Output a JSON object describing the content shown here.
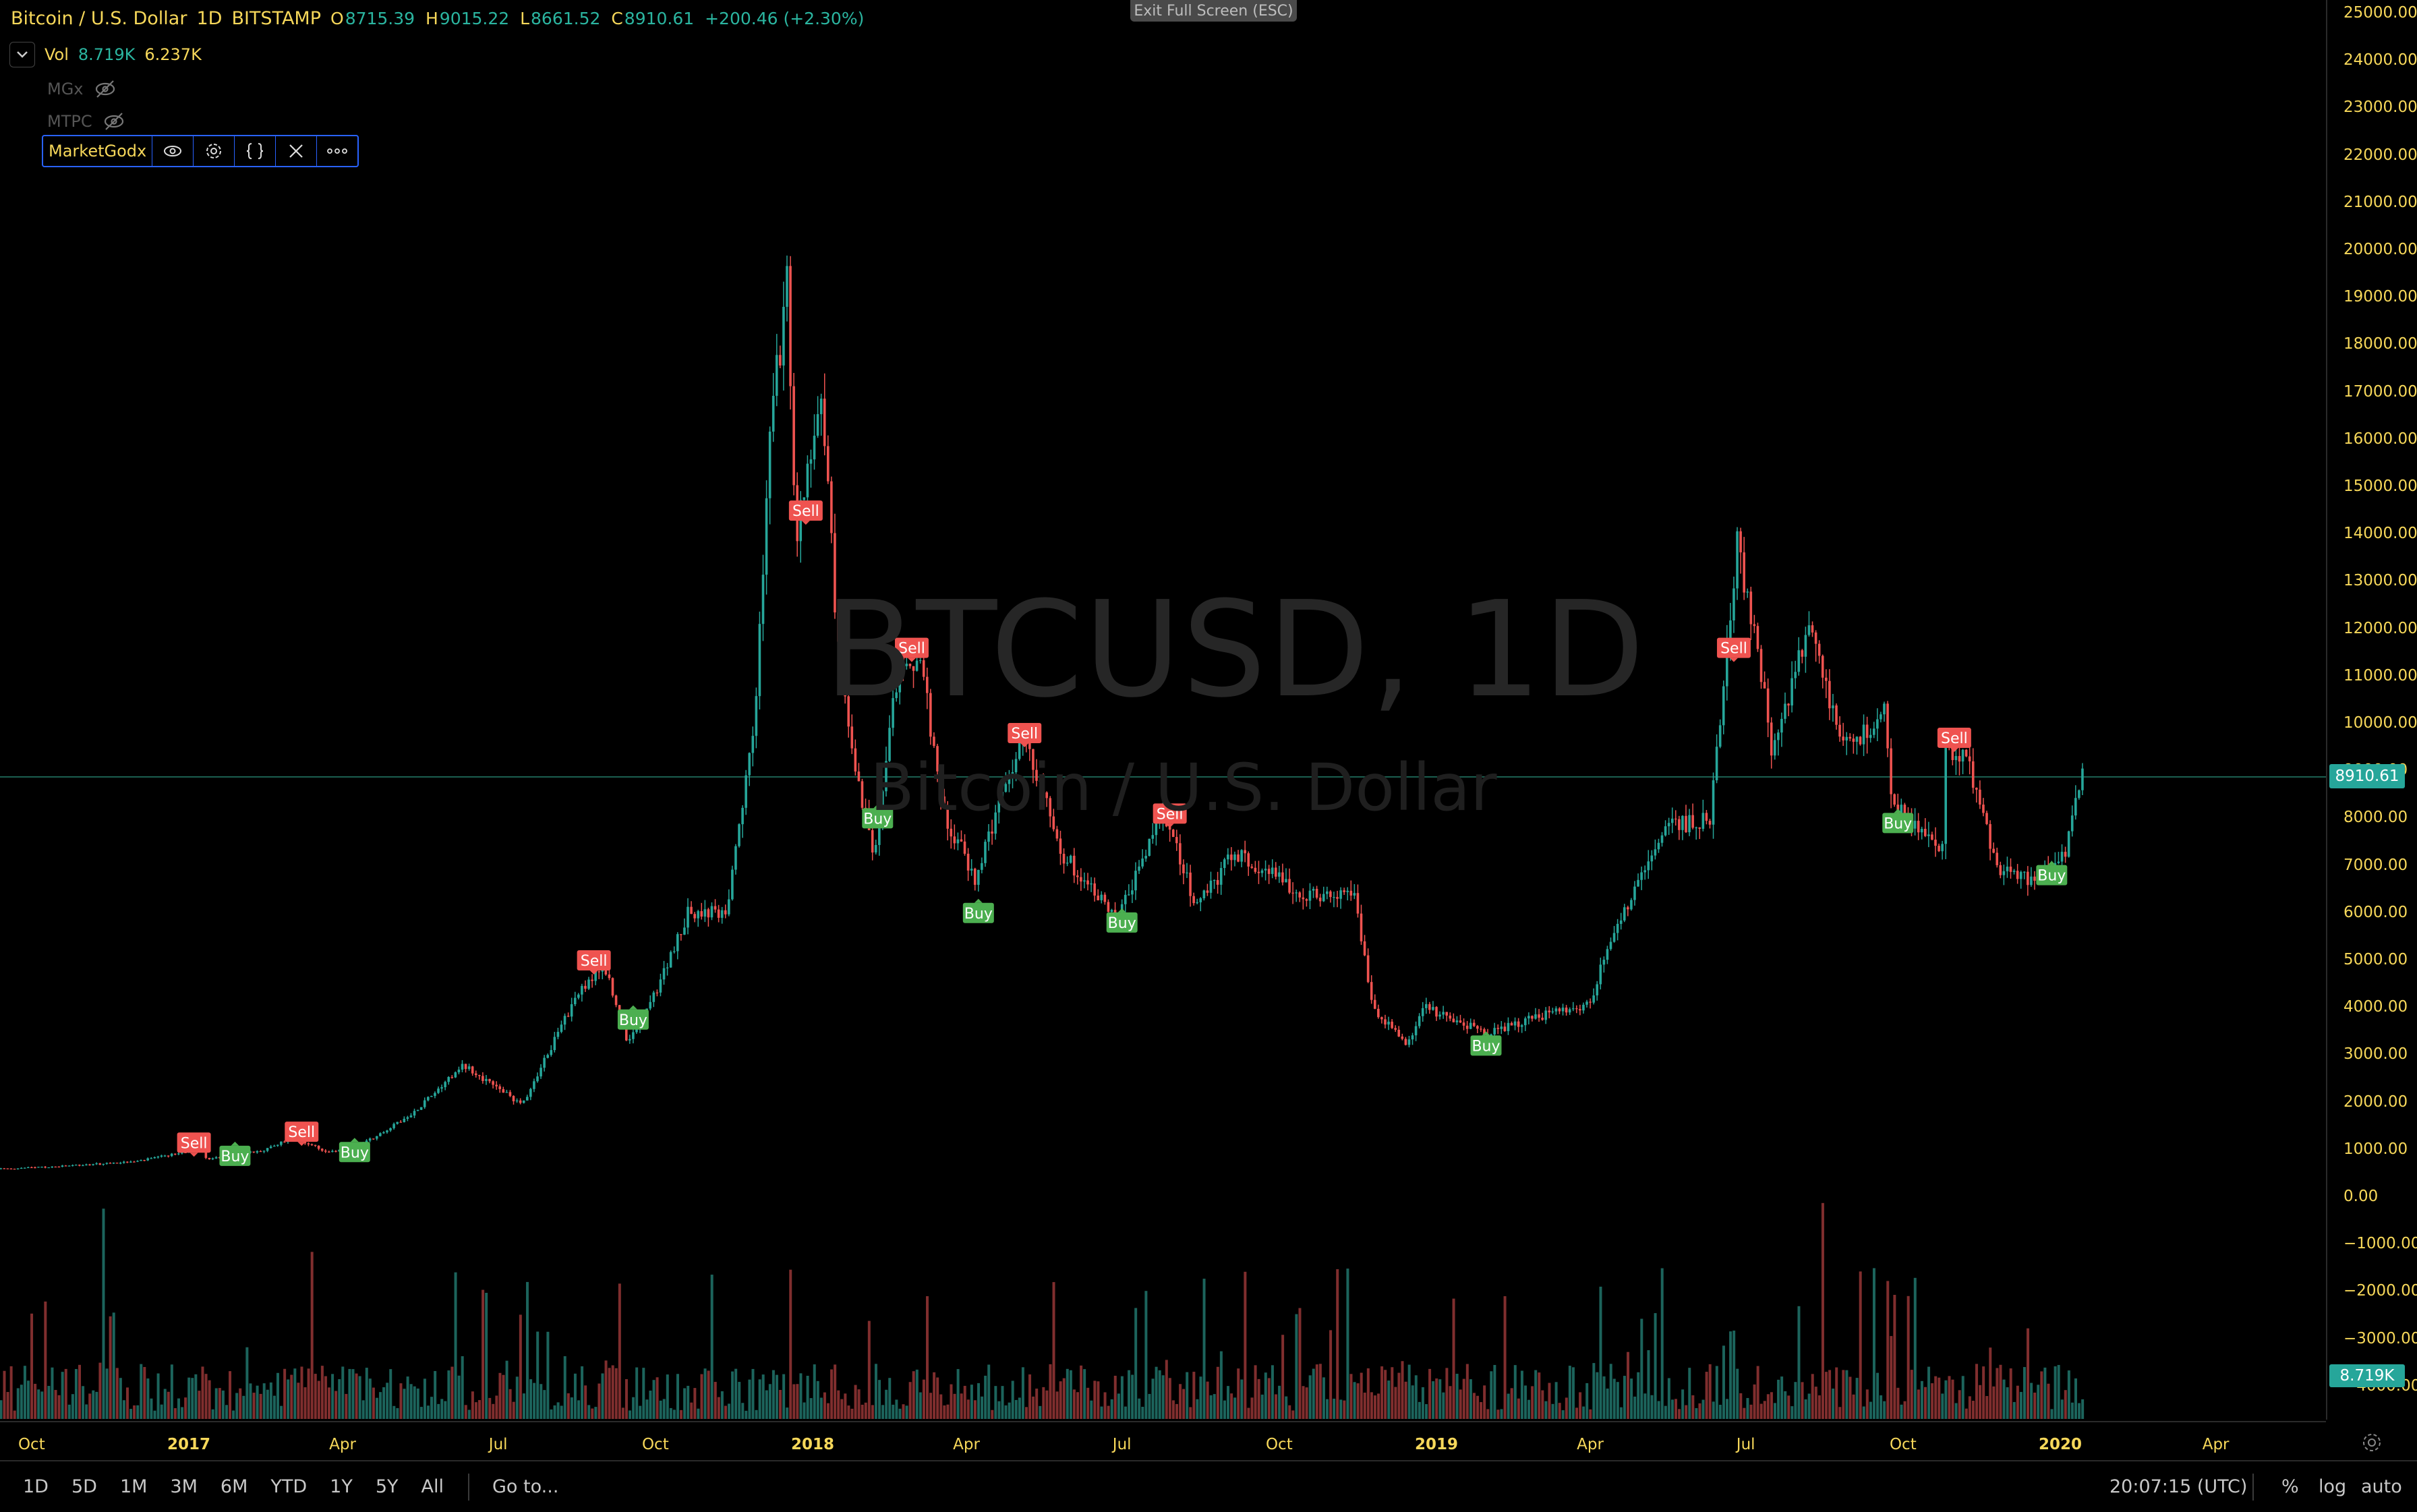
{
  "header": {
    "symbol": "Bitcoin / U.S. Dollar",
    "interval": "1D",
    "exchange": "BITSTAMP",
    "open_label": "O",
    "open": "8715.39",
    "high_label": "H",
    "high": "9015.22",
    "low_label": "L",
    "low": "8661.52",
    "close_label": "C",
    "close": "8910.61",
    "change": "+200.46 (+2.30%)"
  },
  "indicators": {
    "vol_name": "Vol",
    "vol_value1": "8.719K",
    "vol_value2": "6.237K",
    "mgx": "MGx",
    "mtpc": "MTPC",
    "market_godx": "MarketGodx"
  },
  "exit_fullscreen": "Exit Full Screen (ESC)",
  "watermark": {
    "title": "BTCUSD, 1D",
    "subtitle": "Bitcoin / U.S. Dollar"
  },
  "price_tag": "8910.61",
  "volume_tag": "8.719K",
  "yaxis_labels": [
    "25000.00",
    "24000.00",
    "23000.00",
    "22000.00",
    "21000.00",
    "20000.00",
    "19000.00",
    "18000.00",
    "17000.00",
    "16000.00",
    "15000.00",
    "14000.00",
    "13000.00",
    "12000.00",
    "11000.00",
    "10000.00",
    "9000.00",
    "8000.00",
    "7000.00",
    "6000.00",
    "5000.00",
    "4000.00",
    "3000.00",
    "2000.00",
    "1000.00",
    "0.00",
    "−1000.00",
    "−2000.00",
    "−3000.00",
    "−4000.00"
  ],
  "xaxis_labels": [
    {
      "text": "Oct",
      "bold": false
    },
    {
      "text": "2017",
      "bold": true
    },
    {
      "text": "Apr",
      "bold": false
    },
    {
      "text": "Jul",
      "bold": false
    },
    {
      "text": "Oct",
      "bold": false
    },
    {
      "text": "2018",
      "bold": true
    },
    {
      "text": "Apr",
      "bold": false
    },
    {
      "text": "Jul",
      "bold": false
    },
    {
      "text": "Oct",
      "bold": false
    },
    {
      "text": "2019",
      "bold": true
    },
    {
      "text": "Apr",
      "bold": false
    },
    {
      "text": "Jul",
      "bold": false
    },
    {
      "text": "Oct",
      "bold": false
    },
    {
      "text": "2020",
      "bold": true
    },
    {
      "text": "Apr",
      "bold": false
    }
  ],
  "bottom": {
    "ranges": [
      "1D",
      "5D",
      "1M",
      "3M",
      "6M",
      "YTD",
      "1Y",
      "5Y",
      "All"
    ],
    "goto": "Go to...",
    "time": "20:07:15 (UTC)",
    "percent": "%",
    "log": "log",
    "auto": "auto"
  },
  "colors": {
    "up": "#26a69a",
    "down": "#ef5350",
    "axis_text": "#f7d85a",
    "sell": "#ef5350",
    "buy": "#4caf50"
  },
  "chart_data": {
    "type": "candlestick",
    "title": "BTCUSD, 1D",
    "ylim": [
      -4500,
      25000
    ],
    "price_series": [
      {
        "date": "2016-09-01",
        "price": 575
      },
      {
        "date": "2016-10-15",
        "price": 640
      },
      {
        "date": "2016-12-01",
        "price": 750
      },
      {
        "date": "2016-12-31",
        "price": 960
      },
      {
        "date": "2017-01-05",
        "price": 1120
      },
      {
        "date": "2017-01-12",
        "price": 800
      },
      {
        "date": "2017-02-15",
        "price": 1000
      },
      {
        "date": "2017-03-03",
        "price": 1270
      },
      {
        "date": "2017-03-24",
        "price": 930
      },
      {
        "date": "2017-04-15",
        "price": 1180
      },
      {
        "date": "2017-05-10",
        "price": 1700
      },
      {
        "date": "2017-06-10",
        "price": 2800
      },
      {
        "date": "2017-07-15",
        "price": 1950
      },
      {
        "date": "2017-08-15",
        "price": 4200
      },
      {
        "date": "2017-09-01",
        "price": 4900
      },
      {
        "date": "2017-09-15",
        "price": 3200
      },
      {
        "date": "2017-10-01",
        "price": 4300
      },
      {
        "date": "2017-10-20",
        "price": 6000
      },
      {
        "date": "2017-11-12",
        "price": 6000
      },
      {
        "date": "2017-11-28",
        "price": 10000
      },
      {
        "date": "2017-12-08",
        "price": 16500
      },
      {
        "date": "2017-12-17",
        "price": 19200
      },
      {
        "date": "2017-12-22",
        "price": 13800
      },
      {
        "date": "2018-01-06",
        "price": 17100
      },
      {
        "date": "2018-01-17",
        "price": 11000
      },
      {
        "date": "2018-02-06",
        "price": 7000
      },
      {
        "date": "2018-02-20",
        "price": 11200
      },
      {
        "date": "2018-03-05",
        "price": 11400
      },
      {
        "date": "2018-03-18",
        "price": 8200
      },
      {
        "date": "2018-04-06",
        "price": 6700
      },
      {
        "date": "2018-05-05",
        "price": 9800
      },
      {
        "date": "2018-05-28",
        "price": 7200
      },
      {
        "date": "2018-06-29",
        "price": 5900
      },
      {
        "date": "2018-07-24",
        "price": 8200
      },
      {
        "date": "2018-08-14",
        "price": 6100
      },
      {
        "date": "2018-09-05",
        "price": 7300
      },
      {
        "date": "2018-10-15",
        "price": 6400
      },
      {
        "date": "2018-11-14",
        "price": 6300
      },
      {
        "date": "2018-11-25",
        "price": 4000
      },
      {
        "date": "2018-12-15",
        "price": 3200
      },
      {
        "date": "2018-12-25",
        "price": 4000
      },
      {
        "date": "2019-01-31",
        "price": 3450
      },
      {
        "date": "2019-03-01",
        "price": 3800
      },
      {
        "date": "2019-04-01",
        "price": 4100
      },
      {
        "date": "2019-04-10",
        "price": 5200
      },
      {
        "date": "2019-05-15",
        "price": 7800
      },
      {
        "date": "2019-06-10",
        "price": 8000
      },
      {
        "date": "2019-06-26",
        "price": 13800
      },
      {
        "date": "2019-07-10",
        "price": 11000
      },
      {
        "date": "2019-07-17",
        "price": 9300
      },
      {
        "date": "2019-08-06",
        "price": 12000
      },
      {
        "date": "2019-08-29",
        "price": 9500
      },
      {
        "date": "2019-09-20",
        "price": 10200
      },
      {
        "date": "2019-09-25",
        "price": 8300
      },
      {
        "date": "2019-10-24",
        "price": 7400
      },
      {
        "date": "2019-10-26",
        "price": 9500
      },
      {
        "date": "2019-11-08",
        "price": 9200
      },
      {
        "date": "2019-11-25",
        "price": 7000
      },
      {
        "date": "2019-12-17",
        "price": 6600
      },
      {
        "date": "2020-01-05",
        "price": 7400
      },
      {
        "date": "2020-01-14",
        "price": 8900
      }
    ],
    "signals": [
      {
        "type": "Sell",
        "date": "2017-01-04",
        "price": 1150
      },
      {
        "type": "Buy",
        "date": "2017-01-28",
        "price": 870
      },
      {
        "type": "Sell",
        "date": "2017-03-08",
        "price": 1380
      },
      {
        "type": "Buy",
        "date": "2017-04-08",
        "price": 950
      },
      {
        "type": "Sell",
        "date": "2017-08-26",
        "price": 5000
      },
      {
        "type": "Buy",
        "date": "2017-09-18",
        "price": 3750
      },
      {
        "type": "Sell",
        "date": "2017-12-28",
        "price": 14500
      },
      {
        "type": "Buy",
        "date": "2018-02-08",
        "price": 8000
      },
      {
        "type": "Sell",
        "date": "2018-02-28",
        "price": 11600
      },
      {
        "type": "Buy",
        "date": "2018-04-08",
        "price": 6000
      },
      {
        "type": "Sell",
        "date": "2018-05-05",
        "price": 9800
      },
      {
        "type": "Buy",
        "date": "2018-07-01",
        "price": 5800
      },
      {
        "type": "Sell",
        "date": "2018-07-29",
        "price": 8100
      },
      {
        "type": "Buy",
        "date": "2019-01-30",
        "price": 3200
      },
      {
        "type": "Sell",
        "date": "2019-06-24",
        "price": 11600
      },
      {
        "type": "Buy",
        "date": "2019-09-28",
        "price": 7900
      },
      {
        "type": "Sell",
        "date": "2019-10-31",
        "price": 9700
      },
      {
        "type": "Buy",
        "date": "2019-12-27",
        "price": 6800
      }
    ]
  }
}
